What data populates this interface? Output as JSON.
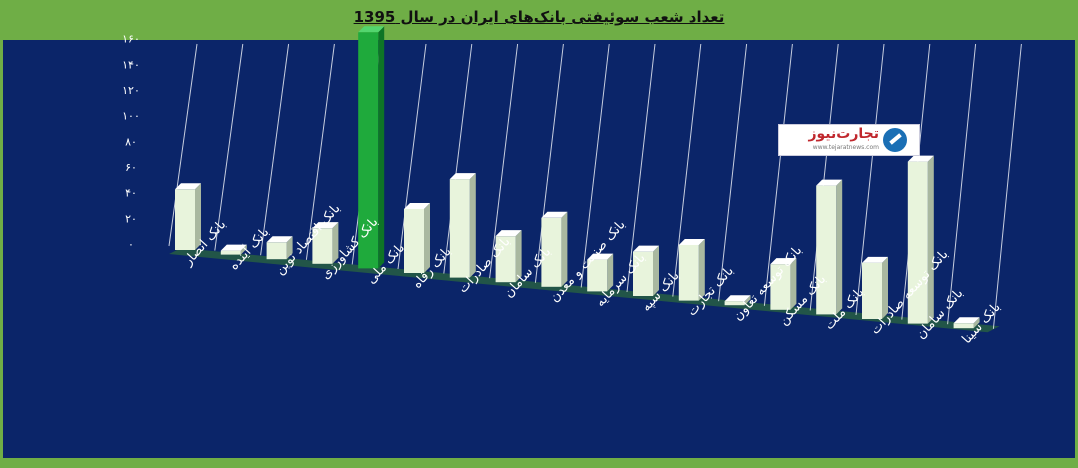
{
  "chart_data": {
    "type": "bar",
    "title": "تعداد شعب سوئیفتی بانک‌های ایران در سال 1395",
    "categories": [
      "بانک انصار",
      "بانک آینده",
      "بانک اقتصاد نوین",
      "بانک کشاورزی",
      "بانک ملی",
      "بانک رفاه",
      "بانک صادرات",
      "بانک سامان",
      "بانک صنعت و معدن",
      "بانک سرمایه",
      "بانک سپه",
      "بانک تجارت",
      "بانک توسعه تعاون",
      "بانک مسکن",
      "بانک ملت",
      "بانک توسعه صادرات",
      "بانک سامان",
      "بانک سینا"
    ],
    "values": [
      44,
      1,
      12,
      25,
      164,
      44,
      67,
      31,
      46,
      21,
      29,
      36,
      2,
      29,
      81,
      35,
      100,
      3
    ],
    "highlight_index": 4,
    "y_tick_labels": [
      "۰",
      "۲۰",
      "۴۰",
      "۶۰",
      "۸۰",
      "۱۰۰",
      "۱۲۰",
      "۱۴۰",
      "۱۶۰"
    ],
    "ylim": [
      0,
      160
    ],
    "grid": true,
    "colors": {
      "bar": "#e8f4dc",
      "bar_side": "#a9b8a0",
      "bar_top": "#ffffff",
      "highlight_bar": "#1faa3c",
      "highlight_side": "#0e7426",
      "highlight_top": "#53d56e",
      "plot_background": "#0b2569",
      "gridline": "#e8ecf4",
      "floor": "#2c6a3a"
    }
  },
  "logo": {
    "text": "تجارت‌نیوز",
    "url_text": "www.tejaratnews.com"
  }
}
